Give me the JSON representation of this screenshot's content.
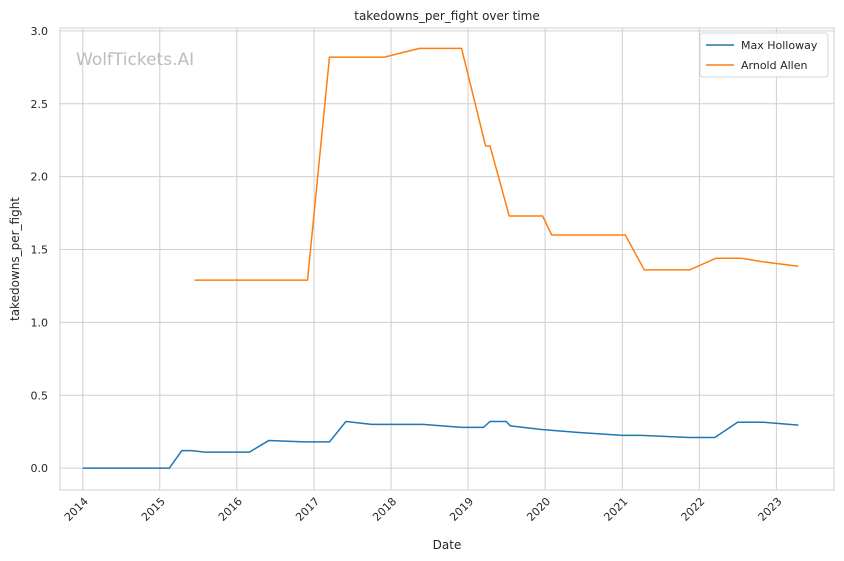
{
  "chart_data": {
    "type": "line",
    "title": "takedowns_per_fight over time",
    "xlabel": "Date",
    "ylabel": "takedowns_per_fight",
    "watermark": "WolfTickets.AI",
    "xlim": [
      "2013-09-15",
      "2023-10-01"
    ],
    "ylim": [
      -0.15,
      3.02
    ],
    "yticks": [
      0.0,
      0.5,
      1.0,
      1.5,
      2.0,
      2.5,
      3.0
    ],
    "ytick_labels": [
      "0.0",
      "0.5",
      "1.0",
      "1.5",
      "2.0",
      "2.5",
      "3.0"
    ],
    "xticks": [
      "2014-01-01",
      "2015-01-01",
      "2016-01-01",
      "2017-01-01",
      "2018-01-01",
      "2019-01-01",
      "2020-01-01",
      "2021-01-01",
      "2022-01-01",
      "2023-01-01"
    ],
    "xtick_labels": [
      "2014",
      "2015",
      "2016",
      "2017",
      "2018",
      "2019",
      "2020",
      "2021",
      "2022",
      "2023"
    ],
    "grid": true,
    "legend": "top-right",
    "series": [
      {
        "name": "Max Holloway",
        "color": "#1f77b4",
        "points": [
          {
            "x": "2014-01-01",
            "y": 0.0
          },
          {
            "x": "2015-02-15",
            "y": 0.0
          },
          {
            "x": "2015-04-15",
            "y": 0.12
          },
          {
            "x": "2015-06-01",
            "y": 0.12
          },
          {
            "x": "2015-08-01",
            "y": 0.11
          },
          {
            "x": "2016-03-01",
            "y": 0.11
          },
          {
            "x": "2016-06-01",
            "y": 0.19
          },
          {
            "x": "2016-11-15",
            "y": 0.18
          },
          {
            "x": "2016-12-15",
            "y": 0.18
          },
          {
            "x": "2017-03-15",
            "y": 0.18
          },
          {
            "x": "2017-06-01",
            "y": 0.32
          },
          {
            "x": "2017-10-01",
            "y": 0.3
          },
          {
            "x": "2018-06-01",
            "y": 0.3
          },
          {
            "x": "2018-12-01",
            "y": 0.28
          },
          {
            "x": "2019-03-15",
            "y": 0.28
          },
          {
            "x": "2019-04-15",
            "y": 0.32
          },
          {
            "x": "2019-07-01",
            "y": 0.32
          },
          {
            "x": "2019-07-20",
            "y": 0.29
          },
          {
            "x": "2019-12-15",
            "y": 0.265
          },
          {
            "x": "2020-06-01",
            "y": 0.245
          },
          {
            "x": "2021-01-01",
            "y": 0.225
          },
          {
            "x": "2021-04-01",
            "y": 0.225
          },
          {
            "x": "2021-11-15",
            "y": 0.21
          },
          {
            "x": "2022-03-15",
            "y": 0.21
          },
          {
            "x": "2022-07-01",
            "y": 0.315
          },
          {
            "x": "2022-11-01",
            "y": 0.315
          },
          {
            "x": "2023-04-15",
            "y": 0.295
          }
        ]
      },
      {
        "name": "Arnold Allen",
        "color": "#ff7f0e",
        "points": [
          {
            "x": "2015-06-15",
            "y": 1.29
          },
          {
            "x": "2016-12-01",
            "y": 1.29
          },
          {
            "x": "2017-03-15",
            "y": 2.82
          },
          {
            "x": "2017-12-01",
            "y": 2.82
          },
          {
            "x": "2018-05-15",
            "y": 2.88
          },
          {
            "x": "2018-12-01",
            "y": 2.88
          },
          {
            "x": "2019-03-25",
            "y": 2.21
          },
          {
            "x": "2019-04-15",
            "y": 2.21
          },
          {
            "x": "2019-07-15",
            "y": 1.73
          },
          {
            "x": "2019-12-20",
            "y": 1.73
          },
          {
            "x": "2020-02-01",
            "y": 1.6
          },
          {
            "x": "2021-01-15",
            "y": 1.6
          },
          {
            "x": "2021-04-15",
            "y": 1.36
          },
          {
            "x": "2021-11-15",
            "y": 1.36
          },
          {
            "x": "2022-03-20",
            "y": 1.44
          },
          {
            "x": "2022-07-20",
            "y": 1.44
          },
          {
            "x": "2022-11-01",
            "y": 1.415
          },
          {
            "x": "2023-04-15",
            "y": 1.385
          }
        ]
      }
    ]
  }
}
